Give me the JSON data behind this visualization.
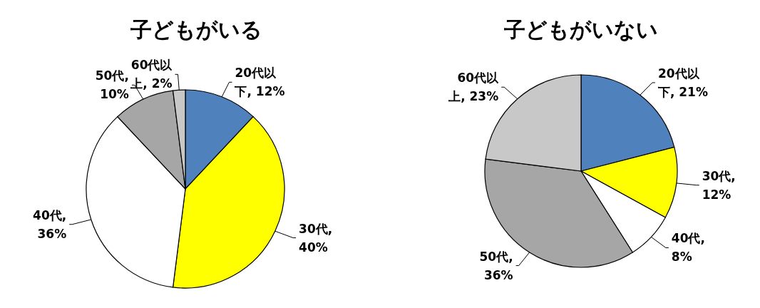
{
  "chart_data": [
    {
      "type": "pie",
      "title": "子どもがいる",
      "categories": [
        "20代以下",
        "30代",
        "40代",
        "50代",
        "60代以上"
      ],
      "values": [
        12,
        40,
        36,
        10,
        2
      ],
      "value_labels": [
        ", 12%",
        ", 40%",
        ", 36%",
        ", 10%",
        ", 2%"
      ],
      "data_labels": true,
      "colors": [
        "#4f81bd",
        "#ffff00",
        "#ffffff",
        "#a6a6a6",
        "#c8c8c8"
      ]
    },
    {
      "type": "pie",
      "title": "子どもがいない",
      "categories": [
        "20代以下",
        "30代",
        "40代",
        "50代",
        "60代以上"
      ],
      "values": [
        21,
        12,
        8,
        36,
        23
      ],
      "value_labels": [
        ", 21%",
        ", 12%",
        ", 8%",
        ", 36%",
        ", 23%"
      ],
      "data_labels": true,
      "colors": [
        "#4f81bd",
        "#ffff00",
        "#ffffff",
        "#a6a6a6",
        "#c8c8c8"
      ]
    }
  ]
}
